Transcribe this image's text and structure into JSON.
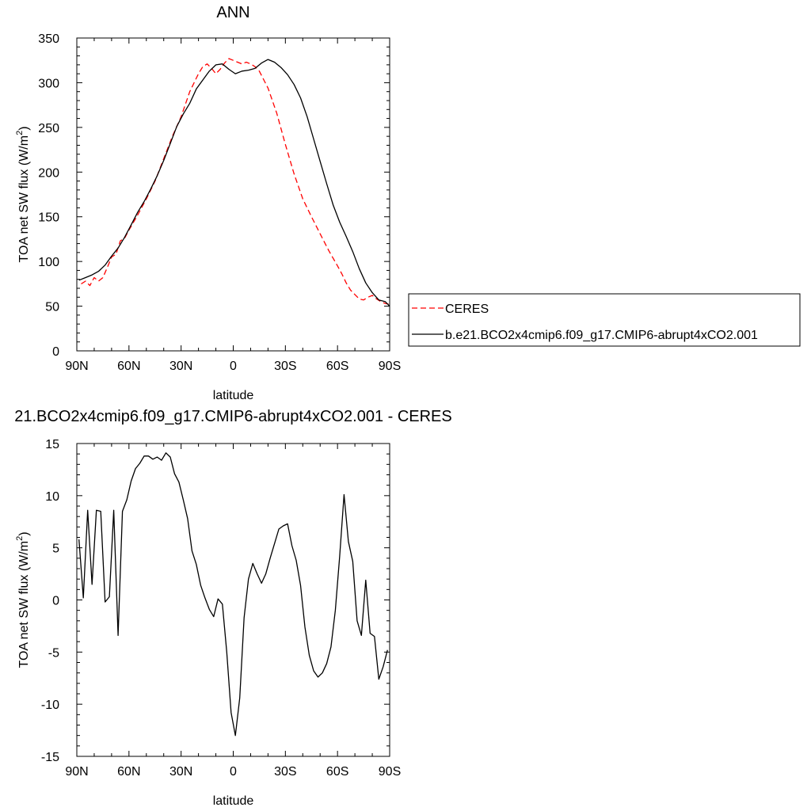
{
  "chart_data": [
    {
      "type": "line",
      "title": "ANN",
      "xlabel": "latitude",
      "ylabel": "TOA net SW flux (W/m",
      "ylabel_sup": "2",
      "ylabel_end": ")",
      "xlim": [
        90,
        -90
      ],
      "ylim": [
        0,
        350
      ],
      "xticks": [
        90,
        60,
        30,
        0,
        -30,
        -60,
        -90
      ],
      "xtick_labels": [
        "90N",
        "60N",
        "30N",
        "0",
        "30S",
        "60S",
        "90S"
      ],
      "yticks": [
        0,
        50,
        100,
        150,
        200,
        250,
        300,
        350
      ],
      "ytick_labels": [
        "0",
        "50",
        "100",
        "150",
        "200",
        "250",
        "300",
        "350"
      ],
      "grid": false,
      "legend_position": "right",
      "series": [
        {
          "name": "CERES",
          "color": "#ff0000",
          "dash": true,
          "x": [
            87.5,
            85,
            82.5,
            80,
            77.5,
            75,
            72.5,
            70,
            67.5,
            65,
            62.5,
            60,
            55,
            50,
            45,
            40,
            35,
            30,
            25,
            20,
            17.5,
            15,
            12.5,
            10,
            7.5,
            5,
            2.5,
            0,
            -2.5,
            -5,
            -7.5,
            -10,
            -12.5,
            -15,
            -20,
            -25,
            -30,
            -35,
            -40,
            -45,
            -50,
            -55,
            -60,
            -62.5,
            -65,
            -67.5,
            -70,
            -72.5,
            -75,
            -77.5,
            -80,
            -82.5,
            -85,
            -87.5,
            -90
          ],
          "y": [
            75,
            78,
            73,
            82,
            78,
            82,
            93,
            105,
            108,
            123,
            126,
            135,
            152,
            170,
            190,
            215,
            240,
            262,
            290,
            310,
            318,
            321,
            316,
            310,
            315,
            322,
            327,
            325,
            323,
            321,
            323,
            321,
            318,
            313,
            294,
            266,
            231,
            198,
            170,
            150,
            131,
            112,
            95,
            86,
            76,
            68,
            63,
            58,
            57,
            60,
            62,
            58,
            55,
            53,
            52
          ]
        },
        {
          "name": "b.e21.BCO2x4cmip6.f09_g17.CMIP6-abrupt4xCO2.001",
          "color": "#000000",
          "dash": false,
          "x": [
            88.75,
            85,
            81.25,
            77.5,
            73.75,
            70,
            66.25,
            62.5,
            58.75,
            55,
            51.25,
            47.5,
            43.75,
            40,
            36.25,
            32.5,
            28.75,
            25,
            21.25,
            17.5,
            13.75,
            10,
            6.25,
            2.5,
            -1.25,
            -5,
            -8.75,
            -12.5,
            -16.25,
            -20,
            -23.75,
            -27.5,
            -31.25,
            -35,
            -38.75,
            -42.5,
            -46.25,
            -50,
            -53.75,
            -57.5,
            -61.25,
            -65,
            -68.75,
            -72.5,
            -76.25,
            -80,
            -83.75,
            -87.5,
            -90
          ],
          "y": [
            79,
            82,
            85,
            89,
            96,
            106,
            115,
            127,
            141,
            155,
            167,
            181,
            196,
            213,
            232,
            251,
            265,
            277,
            293,
            303,
            313,
            320,
            321,
            315,
            310,
            313,
            314,
            316,
            322,
            326,
            323,
            317,
            309,
            298,
            283,
            262,
            237,
            212,
            187,
            163,
            144,
            128,
            111,
            92,
            76,
            65,
            57,
            55,
            50
          ]
        }
      ]
    },
    {
      "type": "line",
      "title": "21.BCO2x4cmip6.f09_g17.CMIP6-abrupt4xCO2.001 - CERES",
      "xlabel": "latitude",
      "ylabel": "TOA net SW flux (W/m",
      "ylabel_sup": "2",
      "ylabel_end": ")",
      "xlim": [
        90,
        -90
      ],
      "ylim": [
        -15,
        15
      ],
      "xticks": [
        90,
        60,
        30,
        0,
        -30,
        -60,
        -90
      ],
      "xtick_labels": [
        "90N",
        "60N",
        "30N",
        "0",
        "30S",
        "60S",
        "90S"
      ],
      "yticks": [
        -15,
        -10,
        -5,
        0,
        5,
        10,
        15
      ],
      "ytick_labels": [
        "-15",
        "-10",
        "-5",
        "0",
        "5",
        "10",
        "15"
      ],
      "grid": false,
      "series": [
        {
          "color": "#000000",
          "dash": false,
          "x": [
            88.75,
            86.25,
            83.75,
            81.25,
            78.75,
            76.25,
            73.75,
            71.25,
            68.75,
            66.25,
            63.75,
            61.25,
            58.75,
            56.25,
            53.75,
            51.25,
            48.75,
            46.25,
            43.75,
            41.25,
            38.75,
            36.25,
            33.75,
            31.25,
            28.75,
            26.25,
            23.75,
            21.25,
            18.75,
            16.25,
            13.75,
            11.25,
            8.75,
            6.25,
            3.75,
            1.25,
            -1.25,
            -3.75,
            -6.25,
            -8.75,
            -11.25,
            -13.75,
            -16.25,
            -18.75,
            -21.25,
            -23.75,
            -26.25,
            -28.75,
            -31.25,
            -33.75,
            -36.25,
            -38.75,
            -41.25,
            -43.75,
            -46.25,
            -48.75,
            -51.25,
            -53.75,
            -56.25,
            -58.75,
            -61.25,
            -63.75,
            -66.25,
            -68.75,
            -71.25,
            -73.75,
            -76.25,
            -78.75,
            -81.25,
            -83.75,
            -86.25,
            -88.75
          ],
          "y": [
            5.8,
            0.2,
            8.6,
            1.5,
            8.6,
            8.5,
            -0.2,
            0.3,
            8.6,
            -3.4,
            8.5,
            9.6,
            11.4,
            12.6,
            13.1,
            13.8,
            13.8,
            13.5,
            13.7,
            13.4,
            14.1,
            13.7,
            12.1,
            11.3,
            9.6,
            7.8,
            4.7,
            3.4,
            1.4,
            0.2,
            -0.9,
            -1.6,
            0.1,
            -0.4,
            -5.0,
            -10.8,
            -13.0,
            -9.4,
            -1.7,
            2.0,
            3.5,
            2.5,
            1.6,
            2.5,
            4.0,
            5.4,
            6.8,
            7.1,
            7.3,
            5.2,
            3.8,
            1.4,
            -2.6,
            -5.3,
            -6.8,
            -7.4,
            -7.0,
            -6.1,
            -4.5,
            -1.0,
            4.2,
            10.1,
            5.6,
            3.7,
            -2.0,
            -3.4,
            1.9,
            -3.2,
            -3.5,
            -7.6,
            -6.4,
            -4.8
          ]
        }
      ]
    }
  ]
}
